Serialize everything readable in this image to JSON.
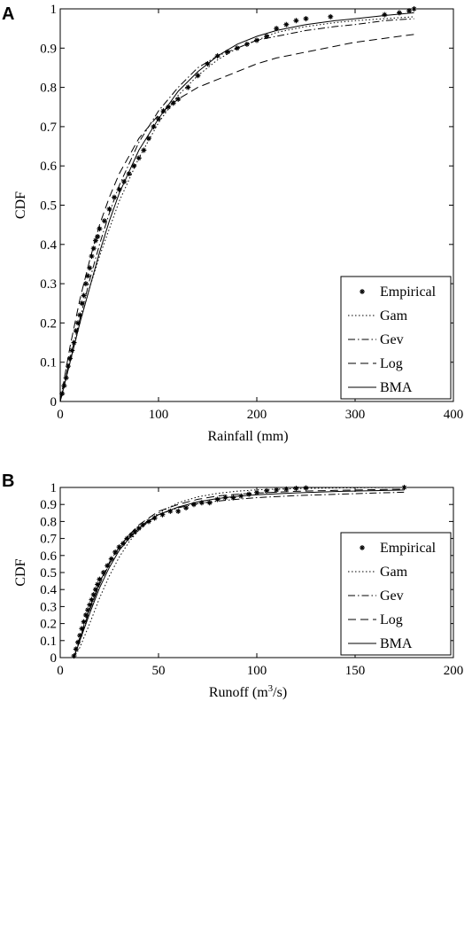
{
  "chart_data": [
    {
      "panel": "A",
      "type": "line",
      "xlabel": "Rainfall (mm)",
      "ylabel": "CDF",
      "xlim": [
        0,
        400
      ],
      "ylim": [
        0,
        1
      ],
      "xticks": [
        "0",
        "100",
        "200",
        "300",
        "400"
      ],
      "yticks": [
        "0",
        "0.1",
        "0.2",
        "0.3",
        "0.4",
        "0.5",
        "0.6",
        "0.7",
        "0.8",
        "0.9",
        "1"
      ],
      "grid": false,
      "legend_position": "bottom-right",
      "series": [
        {
          "name": "Empirical",
          "style": "markers",
          "x": [
            2,
            4,
            6,
            8,
            10,
            12,
            14,
            16,
            18,
            20,
            22,
            24,
            26,
            28,
            30,
            32,
            34,
            36,
            38,
            40,
            45,
            50,
            55,
            60,
            65,
            70,
            75,
            80,
            85,
            90,
            95,
            100,
            105,
            110,
            115,
            120,
            130,
            140,
            150,
            160,
            170,
            180,
            190,
            200,
            210,
            220,
            230,
            240,
            250,
            275,
            330,
            345,
            355,
            360
          ],
          "y": [
            0.02,
            0.04,
            0.06,
            0.09,
            0.11,
            0.13,
            0.15,
            0.18,
            0.2,
            0.22,
            0.25,
            0.27,
            0.3,
            0.32,
            0.34,
            0.37,
            0.39,
            0.41,
            0.42,
            0.44,
            0.46,
            0.49,
            0.52,
            0.54,
            0.56,
            0.58,
            0.6,
            0.62,
            0.64,
            0.67,
            0.7,
            0.72,
            0.74,
            0.75,
            0.76,
            0.77,
            0.8,
            0.83,
            0.86,
            0.88,
            0.89,
            0.9,
            0.91,
            0.92,
            0.93,
            0.95,
            0.96,
            0.97,
            0.975,
            0.98,
            0.985,
            0.99,
            0.995,
            1.0
          ]
        },
        {
          "name": "Gam",
          "style": "dotted",
          "x": [
            0,
            10,
            20,
            30,
            40,
            50,
            60,
            80,
            100,
            120,
            140,
            160,
            180,
            200,
            220,
            250,
            280,
            300,
            330,
            360
          ],
          "y": [
            0,
            0.1,
            0.2,
            0.29,
            0.37,
            0.44,
            0.51,
            0.62,
            0.71,
            0.78,
            0.83,
            0.87,
            0.9,
            0.92,
            0.94,
            0.955,
            0.965,
            0.97,
            0.975,
            0.98
          ]
        },
        {
          "name": "Gev",
          "style": "dashdot",
          "x": [
            0,
            10,
            20,
            30,
            40,
            50,
            60,
            80,
            100,
            120,
            140,
            160,
            180,
            200,
            220,
            250,
            280,
            300,
            330,
            360
          ],
          "y": [
            0,
            0.11,
            0.21,
            0.31,
            0.4,
            0.48,
            0.55,
            0.66,
            0.74,
            0.8,
            0.85,
            0.88,
            0.9,
            0.92,
            0.93,
            0.945,
            0.955,
            0.96,
            0.97,
            0.975
          ]
        },
        {
          "name": "Log",
          "style": "dashed",
          "x": [
            0,
            10,
            20,
            30,
            40,
            50,
            60,
            80,
            100,
            120,
            140,
            160,
            180,
            200,
            220,
            250,
            280,
            300,
            330,
            360
          ],
          "y": [
            0,
            0.14,
            0.26,
            0.36,
            0.45,
            0.52,
            0.58,
            0.67,
            0.73,
            0.77,
            0.8,
            0.82,
            0.84,
            0.86,
            0.875,
            0.89,
            0.905,
            0.915,
            0.925,
            0.935
          ]
        },
        {
          "name": "BMA",
          "style": "solid",
          "x": [
            0,
            10,
            20,
            30,
            40,
            50,
            60,
            80,
            100,
            120,
            140,
            160,
            180,
            200,
            220,
            250,
            280,
            300,
            330,
            360
          ],
          "y": [
            0,
            0.1,
            0.2,
            0.29,
            0.38,
            0.46,
            0.53,
            0.64,
            0.72,
            0.79,
            0.84,
            0.88,
            0.91,
            0.93,
            0.945,
            0.96,
            0.97,
            0.975,
            0.983,
            0.99
          ]
        }
      ]
    },
    {
      "panel": "B",
      "type": "line",
      "xlabel_main": "Runoff (m",
      "xlabel_sup": "3",
      "xlabel_tail": "/s)",
      "ylabel": "CDF",
      "xlim": [
        0,
        200
      ],
      "ylim": [
        0,
        1
      ],
      "xticks": [
        "0",
        "50",
        "100",
        "150",
        "200"
      ],
      "yticks": [
        "0",
        "0.1",
        "0.2",
        "0.3",
        "0.4",
        "0.5",
        "0.6",
        "0.7",
        "0.8",
        "0.9",
        "1"
      ],
      "grid": false,
      "legend_position": "bottom-right",
      "series": [
        {
          "name": "Empirical",
          "style": "markers",
          "x": [
            7,
            8,
            9,
            10,
            11,
            12,
            13,
            14,
            15,
            16,
            17,
            18,
            19,
            20,
            22,
            24,
            26,
            28,
            30,
            32,
            34,
            36,
            38,
            40,
            42,
            45,
            48,
            52,
            56,
            60,
            64,
            68,
            72,
            76,
            80,
            84,
            88,
            92,
            96,
            100,
            105,
            110,
            115,
            120,
            125,
            175
          ],
          "y": [
            0.01,
            0.05,
            0.09,
            0.13,
            0.17,
            0.21,
            0.25,
            0.28,
            0.31,
            0.34,
            0.37,
            0.4,
            0.43,
            0.46,
            0.5,
            0.54,
            0.58,
            0.62,
            0.65,
            0.67,
            0.7,
            0.72,
            0.74,
            0.76,
            0.78,
            0.8,
            0.82,
            0.84,
            0.86,
            0.86,
            0.88,
            0.9,
            0.91,
            0.91,
            0.93,
            0.94,
            0.94,
            0.95,
            0.96,
            0.97,
            0.98,
            0.985,
            0.99,
            0.995,
            0.997,
            1.0
          ]
        },
        {
          "name": "Gam",
          "style": "dotted",
          "x": [
            7,
            10,
            15,
            20,
            25,
            30,
            35,
            40,
            50,
            60,
            70,
            80,
            90,
            100,
            120,
            140,
            160,
            175
          ],
          "y": [
            0,
            0.06,
            0.2,
            0.35,
            0.48,
            0.59,
            0.68,
            0.75,
            0.85,
            0.91,
            0.945,
            0.965,
            0.978,
            0.986,
            0.993,
            0.997,
            0.999,
            1.0
          ]
        },
        {
          "name": "Gev",
          "style": "dashdot",
          "x": [
            7,
            10,
            15,
            20,
            25,
            30,
            35,
            40,
            50,
            60,
            70,
            80,
            90,
            100,
            120,
            140,
            160,
            175
          ],
          "y": [
            0,
            0.12,
            0.29,
            0.44,
            0.56,
            0.65,
            0.72,
            0.77,
            0.84,
            0.88,
            0.905,
            0.92,
            0.93,
            0.94,
            0.952,
            0.96,
            0.967,
            0.972
          ]
        },
        {
          "name": "Log",
          "style": "dashed",
          "x": [
            7,
            10,
            15,
            20,
            25,
            30,
            35,
            40,
            50,
            60,
            70,
            80,
            90,
            100,
            120,
            140,
            160,
            175
          ],
          "y": [
            0,
            0.11,
            0.28,
            0.43,
            0.55,
            0.65,
            0.72,
            0.78,
            0.86,
            0.9,
            0.93,
            0.95,
            0.96,
            0.967,
            0.977,
            0.983,
            0.987,
            0.99
          ]
        },
        {
          "name": "BMA",
          "style": "solid",
          "x": [
            7,
            10,
            15,
            20,
            25,
            30,
            35,
            40,
            50,
            60,
            70,
            80,
            90,
            100,
            120,
            140,
            160,
            175
          ],
          "y": [
            0,
            0.1,
            0.26,
            0.41,
            0.53,
            0.63,
            0.7,
            0.76,
            0.84,
            0.885,
            0.915,
            0.935,
            0.948,
            0.957,
            0.968,
            0.976,
            0.981,
            0.985
          ]
        }
      ]
    }
  ]
}
